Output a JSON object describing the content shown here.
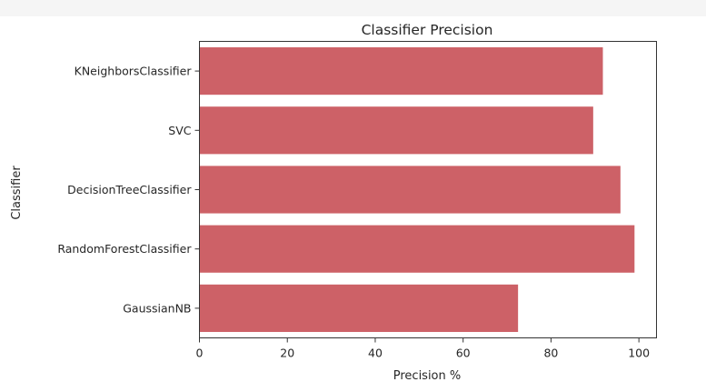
{
  "chart_data": {
    "type": "bar",
    "orientation": "horizontal",
    "title": "Classifier Precision",
    "xlabel": "Precision %",
    "ylabel": "Classifier",
    "categories": [
      "KNeighborsClassifier",
      "SVC",
      "DecisionTreeClassifier",
      "RandomForestClassifier",
      "GaussianNB"
    ],
    "values": [
      91.8,
      89.6,
      95.8,
      99.0,
      72.5
    ],
    "xlim": [
      0,
      104
    ],
    "xticks": [
      0,
      20,
      40,
      60,
      80,
      100
    ],
    "bar_color": "#cd6167",
    "grid": false,
    "legend": "none"
  }
}
